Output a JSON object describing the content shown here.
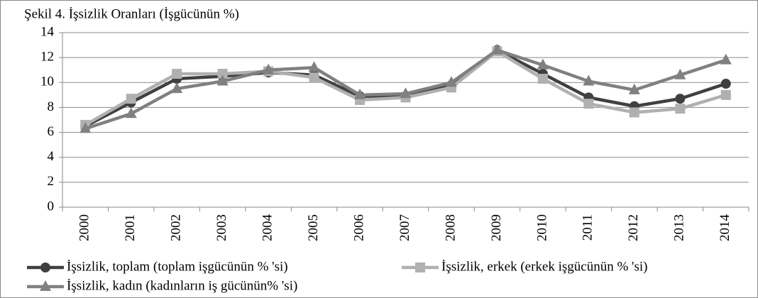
{
  "chart_data": {
    "type": "line",
    "title": "Şekil 4. İşsizlik Oranları (İşgücünün %)",
    "categories": [
      "2000",
      "2001",
      "2002",
      "2003",
      "2004",
      "2005",
      "2006",
      "2007",
      "2008",
      "2009",
      "2010",
      "2011",
      "2012",
      "2013",
      "2014"
    ],
    "series": [
      {
        "name": "İşsizlik, toplam (toplam işgücünün % 'si)",
        "color": "#404040",
        "marker": "circle",
        "values": [
          6.5,
          8.4,
          10.3,
          10.5,
          10.8,
          10.6,
          8.9,
          8.9,
          9.8,
          12.6,
          10.7,
          8.8,
          8.1,
          8.7,
          9.9
        ]
      },
      {
        "name": "İşsizlik, erkek (erkek işgücünün % 'si)",
        "color": "#b0b0b0",
        "marker": "square",
        "values": [
          6.6,
          8.7,
          10.7,
          10.7,
          10.9,
          10.4,
          8.6,
          8.8,
          9.6,
          12.5,
          10.3,
          8.3,
          7.6,
          7.9,
          9.0
        ]
      },
      {
        "name": "İşsizlik, kadın (kadınların iş gücünün% 'si)",
        "color": "#808080",
        "marker": "triangle",
        "values": [
          6.3,
          7.5,
          9.5,
          10.1,
          11.0,
          11.2,
          9.0,
          9.1,
          10.0,
          12.6,
          11.4,
          10.1,
          9.4,
          10.6,
          11.8
        ]
      }
    ],
    "ylim": [
      0,
      14
    ],
    "yticks": [
      0,
      2,
      4,
      6,
      8,
      10,
      12,
      14
    ],
    "grid": true
  }
}
